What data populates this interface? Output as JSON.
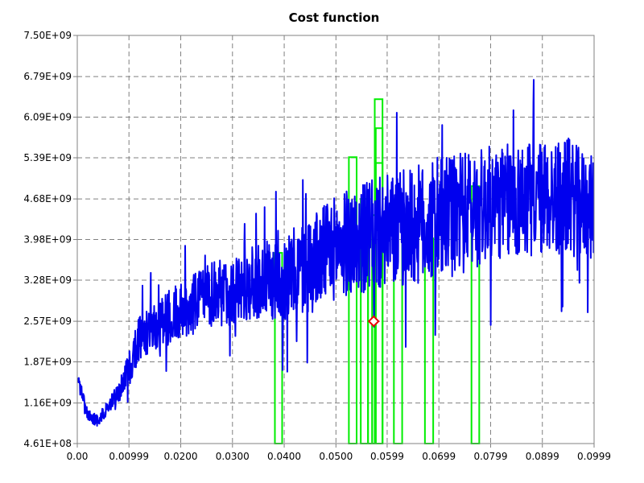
{
  "chart_data": {
    "type": "line",
    "title": "Cost function",
    "xlabel": "",
    "ylabel": "",
    "xlim": [
      0.0,
      0.0999
    ],
    "ylim": [
      461000000,
      7500000000
    ],
    "x_ticks": [
      0.0,
      0.00999,
      0.02,
      0.03,
      0.04,
      0.05,
      0.0599,
      0.0699,
      0.0799,
      0.0899,
      0.0999
    ],
    "x_tick_labels": [
      "0.00",
      "0.00999",
      "0.0200",
      "0.0300",
      "0.0400",
      "0.0500",
      "0.0599",
      "0.0699",
      "0.0799",
      "0.0899",
      "0.0999"
    ],
    "y_ticks": [
      461000000,
      1160000000,
      1870000000,
      2570000000,
      3280000000,
      3980000000,
      4680000000,
      5390000000,
      6090000000,
      6790000000,
      7500000000
    ],
    "y_tick_labels": [
      "4.61E+08",
      "1.16E+09",
      "1.87E+09",
      "2.57E+09",
      "3.28E+09",
      "3.98E+09",
      "4.68E+09",
      "5.39E+09",
      "6.09E+09",
      "6.79E+09",
      "7.50E+09"
    ],
    "grid": true,
    "legend": "none",
    "series": [
      {
        "kind": "noisy-line",
        "color": "#0000ee",
        "x": [
          0.0001,
          0.002,
          0.004,
          0.006,
          0.008,
          0.01,
          0.012,
          0.015,
          0.02,
          0.025,
          0.03,
          0.035,
          0.04,
          0.045,
          0.05,
          0.055,
          0.06,
          0.065,
          0.07,
          0.075,
          0.08,
          0.085,
          0.09,
          0.095,
          0.0998
        ],
        "mean": [
          1600000000.0,
          950000000.0,
          850000000.0,
          1100000000.0,
          1350000000.0,
          1750000000.0,
          2300000000.0,
          2500000000.0,
          2750000000.0,
          3000000000.0,
          3100000000.0,
          3250000000.0,
          3300000000.0,
          3550000000.0,
          3850000000.0,
          4000000000.0,
          4100000000.0,
          4200000000.0,
          4300000000.0,
          4450000000.0,
          4600000000.0,
          4650000000.0,
          4700000000.0,
          4700000000.0,
          4500000000.0
        ],
        "amplitude": [
          100000000.0,
          100000000.0,
          100000000.0,
          120000000.0,
          180000000.0,
          300000000.0,
          400000000.0,
          450000000.0,
          500000000.0,
          550000000.0,
          600000000.0,
          650000000.0,
          750000000.0,
          850000000.0,
          900000000.0,
          950000000.0,
          1000000000.0,
          1050000000.0,
          1050000000.0,
          1050000000.0,
          1000000000.0,
          1000000000.0,
          1000000000.0,
          1000000000.0,
          900000000.0
        ]
      }
    ],
    "bars": {
      "color": "#00ee00",
      "base": 461000000,
      "items": [
        {
          "x0": 0.0382,
          "x1": 0.0396,
          "top": 3750000000.0
        },
        {
          "x0": 0.0525,
          "x1": 0.054,
          "top": 5400000000.0
        },
        {
          "x0": 0.0548,
          "x1": 0.0562,
          "top": 4680000000.0
        },
        {
          "x0": 0.0562,
          "x1": 0.057,
          "top": 4300000000.0
        },
        {
          "x0": 0.057,
          "x1": 0.0575,
          "top": 4400000000.0
        },
        {
          "x0": 0.0575,
          "x1": 0.059,
          "top": 6400000000.0
        },
        {
          "x0": 0.0577,
          "x1": 0.059,
          "top": 5900000000.0
        },
        {
          "x0": 0.0577,
          "x1": 0.059,
          "top": 5300000000.0
        },
        {
          "x0": 0.0612,
          "x1": 0.0628,
          "top": 4600000000.0
        },
        {
          "x0": 0.0672,
          "x1": 0.0688,
          "top": 4000000000.0
        },
        {
          "x0": 0.0762,
          "x1": 0.0777,
          "top": 4900000000.0
        }
      ]
    },
    "marker": {
      "shape": "diamond",
      "color": "#ee0000",
      "x": 0.0573,
      "y": 2570000000.0
    }
  }
}
